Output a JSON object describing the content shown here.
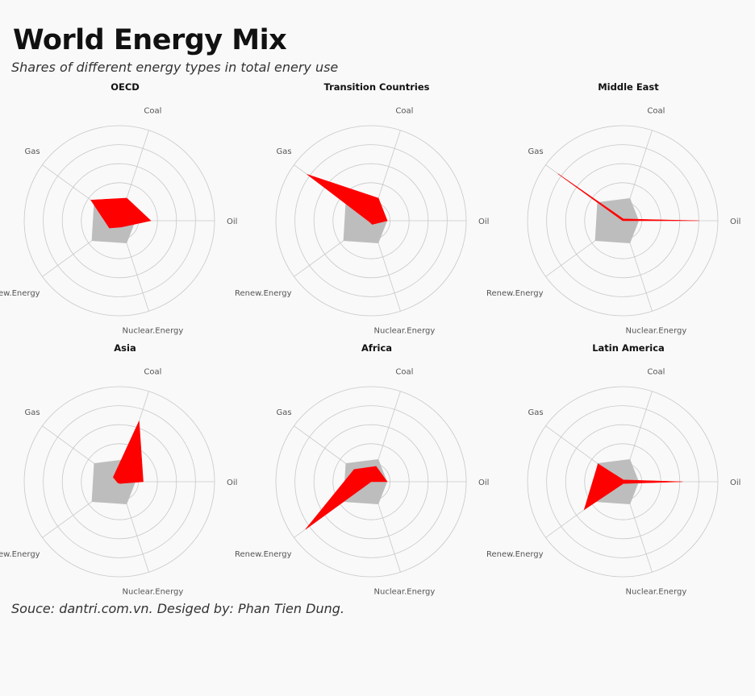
{
  "title": "World Energy Mix",
  "subtitle": "Shares of different energy types in total enery use",
  "caption": "Souce: dantri.com.vn. Desiged by: Phan Tien Dung.",
  "colors": {
    "highlight": "#ff0000",
    "world_average": "#bdbdbd",
    "grid": "#c8c8c8",
    "background": "#f9f9f9"
  },
  "chart_data": {
    "type": "radar",
    "axes": [
      "Oil",
      "Coal",
      "Gas",
      "Renew.Energy",
      "Nuclear.Energy"
    ],
    "rlim": [
      0,
      1
    ],
    "rings": 5,
    "grid": true,
    "reference_shape": [
      0.17,
      0.25,
      0.33,
      0.36,
      0.25
    ],
    "panels": [
      {
        "name": "OECD",
        "values": [
          0.33,
          0.25,
          0.37,
          0.13,
          0.07
        ]
      },
      {
        "name": "Transition Countries",
        "values": [
          0.17,
          0.25,
          0.83,
          0.02,
          0.04
        ]
      },
      {
        "name": "Middle East",
        "values": [
          0.8,
          0.02,
          0.84,
          0.0,
          0.0
        ]
      },
      {
        "name": "Asia",
        "values": [
          0.25,
          0.67,
          0.08,
          0.02,
          0.02
        ]
      },
      {
        "name": "Africa",
        "values": [
          0.17,
          0.17,
          0.22,
          0.85,
          0.0
        ]
      },
      {
        "name": "Latin America",
        "values": [
          0.63,
          0.02,
          0.32,
          0.5,
          0.02
        ]
      }
    ]
  }
}
